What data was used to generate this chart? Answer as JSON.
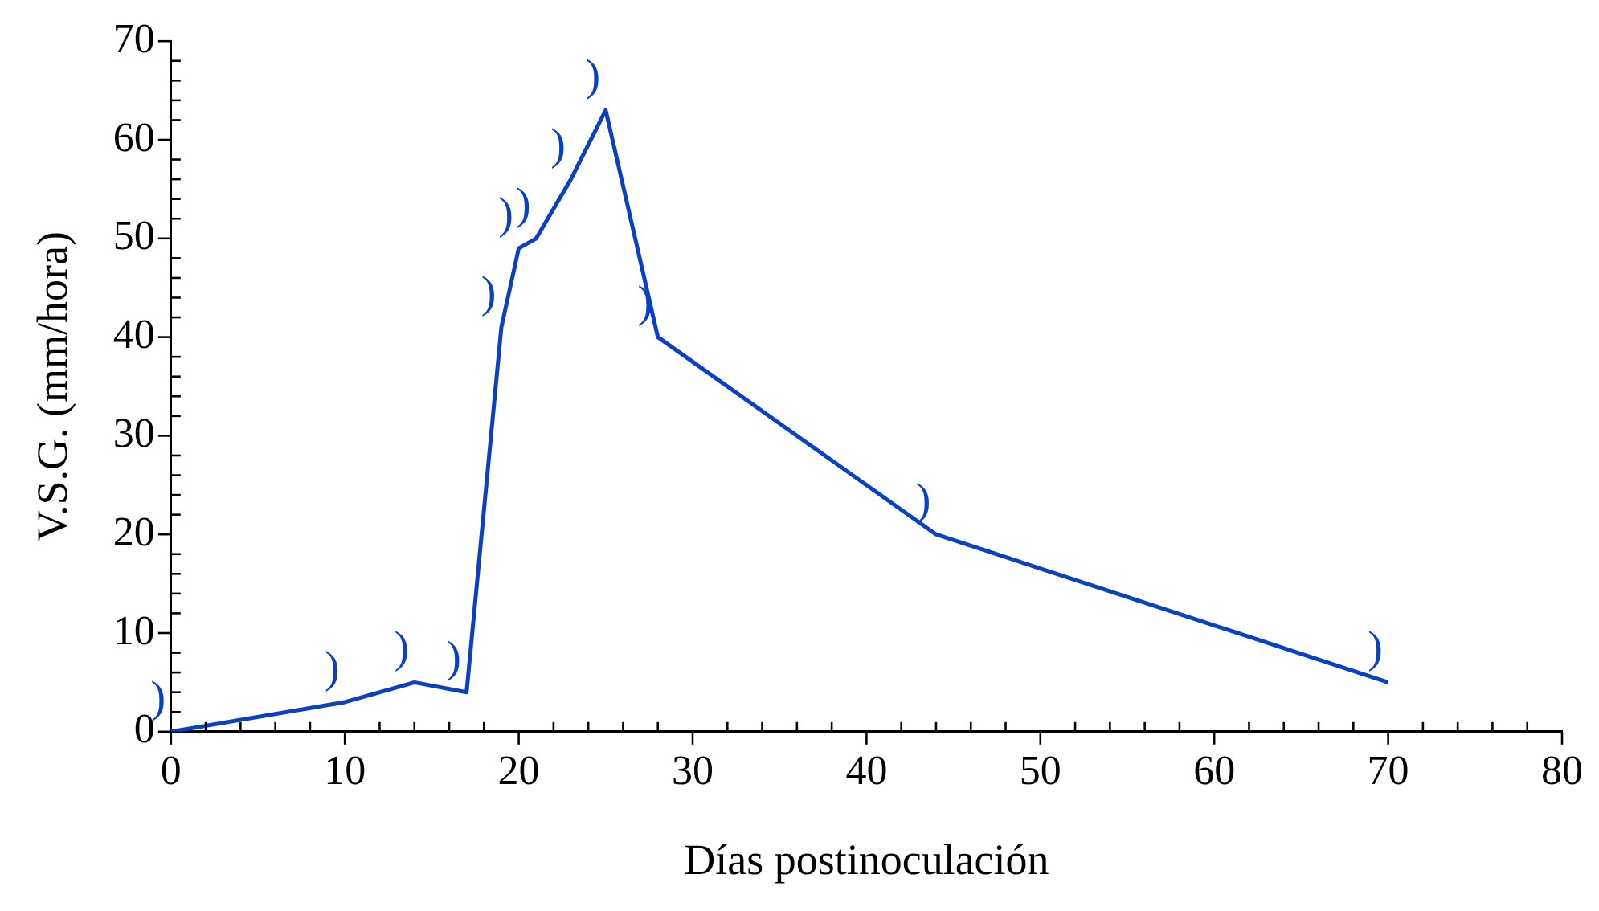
{
  "chart_data": {
    "type": "line",
    "xlabel": "Días postinoculación",
    "ylabel": "V.S.G. (mm/hora)",
    "x": [
      0,
      10,
      14,
      17,
      19,
      20,
      21,
      23,
      25,
      28,
      44,
      70
    ],
    "series": [
      {
        "color": "#0a41c3",
        "values": [
          0,
          3,
          5,
          4,
          41,
          49,
          50,
          56,
          63,
          40,
          20,
          5
        ]
      }
    ],
    "xlim": [
      0,
      80
    ],
    "xticks": [
      0,
      {
        "value": 2,
        "label": null
      },
      {
        "value": 4,
        "label": null
      },
      {
        "value": 6,
        "label": null
      },
      {
        "value": 8,
        "label": null
      },
      10,
      {
        "value": 12,
        "label": null
      },
      {
        "value": 14,
        "label": null
      },
      {
        "value": 16,
        "label": null
      },
      {
        "value": 18,
        "label": null
      },
      20,
      {
        "value": 22,
        "label": null
      },
      {
        "value": 24,
        "label": null
      },
      {
        "value": 26,
        "label": null
      },
      {
        "value": 28,
        "label": null
      },
      30,
      {
        "value": 32,
        "label": null
      },
      {
        "value": 34,
        "label": null
      },
      {
        "value": 36,
        "label": null
      },
      {
        "value": 38,
        "label": null
      },
      40,
      {
        "value": 42,
        "label": null
      },
      {
        "value": 44,
        "label": null
      },
      {
        "value": 46,
        "label": null
      },
      {
        "value": 48,
        "label": null
      },
      50,
      {
        "value": 52,
        "label": null
      },
      {
        "value": 54,
        "label": null
      },
      {
        "value": 56,
        "label": null
      },
      {
        "value": 58,
        "label": null
      },
      60,
      {
        "value": 62,
        "label": null
      },
      {
        "value": 64,
        "label": null
      },
      {
        "value": 66,
        "label": null
      },
      {
        "value": 68,
        "label": null
      },
      70,
      {
        "value": 72,
        "label": null
      },
      {
        "value": 74,
        "label": null
      },
      {
        "value": 76,
        "label": null
      },
      {
        "value": 78,
        "label": null
      },
      80
    ],
    "ylim": [
      0,
      70
    ],
    "yticks": [
      0,
      {
        "value": 2,
        "label": null
      },
      {
        "value": 4,
        "label": null
      },
      {
        "value": 6,
        "label": null
      },
      {
        "value": 8,
        "label": null
      },
      10,
      {
        "value": 12,
        "label": null
      },
      {
        "value": 14,
        "label": null
      },
      {
        "value": 16,
        "label": null
      },
      {
        "value": 18,
        "label": null
      },
      20,
      {
        "value": 22,
        "label": null
      },
      {
        "value": 24,
        "label": null
      },
      {
        "value": 26,
        "label": null
      },
      {
        "value": 28,
        "label": null
      },
      30,
      {
        "value": 32,
        "label": null
      },
      {
        "value": 34,
        "label": null
      },
      {
        "value": 36,
        "label": null
      },
      {
        "value": 38,
        "label": null
      },
      40,
      {
        "value": 42,
        "label": null
      },
      {
        "value": 44,
        "label": null
      },
      {
        "value": 46,
        "label": null
      },
      {
        "value": 48,
        "label": null
      },
      50,
      {
        "value": 52,
        "label": null
      },
      {
        "value": 54,
        "label": null
      },
      {
        "value": 56,
        "label": null
      },
      {
        "value": 58,
        "label": null
      },
      60,
      {
        "value": 62,
        "label": null
      },
      {
        "value": 64,
        "label": null
      },
      {
        "value": 66,
        "label": null
      },
      {
        "value": 68,
        "label": null
      },
      70
    ],
    "grid": false,
    "legend": false,
    "marker": "none",
    "line_style": "solid",
    "annotations": [
      {
        "text": ")",
        "x": 0,
        "y": 0
      },
      {
        "text": ")",
        "x": 10,
        "y": 3
      },
      {
        "text": ")",
        "x": 14,
        "y": 5
      },
      {
        "text": ")",
        "x": 17,
        "y": 4
      },
      {
        "text": ")",
        "x": 19,
        "y": 41
      },
      {
        "text": ")",
        "x": 20,
        "y": 49
      },
      {
        "text": ")",
        "x": 21,
        "y": 50
      },
      {
        "text": ")",
        "x": 23,
        "y": 56
      },
      {
        "text": ")",
        "x": 25,
        "y": 63
      },
      {
        "text": ")",
        "x": 28,
        "y": 40
      },
      {
        "text": ")",
        "x": 44,
        "y": 20
      },
      {
        "text": ")",
        "x": 70,
        "y": 5
      }
    ]
  }
}
